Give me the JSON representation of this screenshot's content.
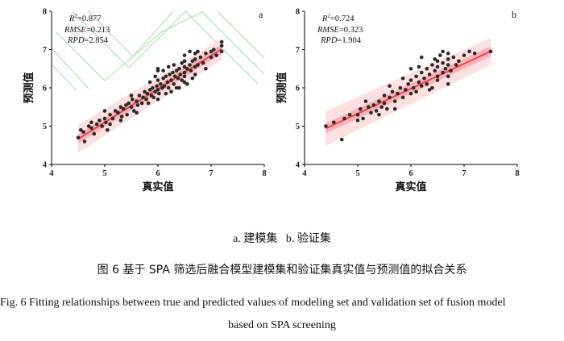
{
  "subcaption": {
    "a_label": "a. 建模集",
    "b_label": "b. 验证集"
  },
  "figure_caption_cn": "图 6   基于 SPA 筛选后融合模型建模集和验证集真实值与预测值的拟合关系",
  "figure_caption_en_line1": "Fig. 6  Fitting relationships between true and predicted values of modeling set and validation set of fusion model",
  "figure_caption_en_line2": "based on SPA screening",
  "colors": {
    "points": "#2a2a2a",
    "fit_line": "#e8474c",
    "band_inner": "#f4a3a7",
    "band_outer": "#fbd9db",
    "axis": "#000000",
    "contour": "#9fe09f"
  },
  "chart_data": [
    {
      "type": "scatter",
      "panel": "a",
      "xlabel": "真实值",
      "ylabel": "预测值",
      "xlim": [
        4,
        8
      ],
      "ylim": [
        4,
        8
      ],
      "xticks": [
        4,
        5,
        6,
        7,
        8
      ],
      "yticks": [
        4,
        5,
        6,
        7,
        8
      ],
      "stats": {
        "r2": "=0.877",
        "rmse": "=0.213",
        "rpd": "=2.854"
      },
      "fit": {
        "slope": 0.87,
        "intercept": 0.75,
        "x_range": [
          4.5,
          7.2
        ],
        "band_inner": 0.12,
        "band_outer": 0.28
      },
      "points": [
        [
          4.5,
          4.7
        ],
        [
          4.55,
          4.9
        ],
        [
          4.6,
          4.85
        ],
        [
          4.62,
          4.6
        ],
        [
          4.7,
          5.0
        ],
        [
          4.75,
          5.1
        ],
        [
          4.8,
          4.8
        ],
        [
          4.85,
          5.05
        ],
        [
          4.9,
          5.15
        ],
        [
          4.95,
          5.0
        ],
        [
          5.0,
          5.2
        ],
        [
          5.02,
          5.1
        ],
        [
          5.05,
          4.9
        ],
        [
          5.1,
          5.3
        ],
        [
          5.15,
          5.2
        ],
        [
          5.2,
          5.4
        ],
        [
          5.25,
          5.35
        ],
        [
          5.3,
          5.5
        ],
        [
          5.32,
          5.25
        ],
        [
          5.35,
          5.45
        ],
        [
          5.4,
          5.55
        ],
        [
          5.42,
          5.3
        ],
        [
          5.45,
          5.6
        ],
        [
          5.5,
          5.5
        ],
        [
          5.52,
          5.7
        ],
        [
          5.55,
          5.4
        ],
        [
          5.6,
          5.65
        ],
        [
          5.62,
          5.55
        ],
        [
          5.65,
          5.8
        ],
        [
          5.7,
          5.6
        ],
        [
          5.72,
          5.75
        ],
        [
          5.75,
          5.9
        ],
        [
          5.78,
          5.7
        ],
        [
          5.8,
          5.85
        ],
        [
          5.82,
          5.6
        ],
        [
          5.85,
          5.95
        ],
        [
          5.88,
          5.8
        ],
        [
          5.9,
          6.0
        ],
        [
          5.92,
          5.75
        ],
        [
          5.95,
          5.9
        ],
        [
          5.98,
          6.05
        ],
        [
          6.0,
          5.95
        ],
        [
          6.0,
          6.2
        ],
        [
          6.02,
          5.85
        ],
        [
          6.05,
          6.1
        ],
        [
          6.08,
          6.0
        ],
        [
          6.1,
          6.25
        ],
        [
          6.12,
          6.05
        ],
        [
          6.15,
          6.3
        ],
        [
          6.18,
          6.15
        ],
        [
          6.2,
          6.0
        ],
        [
          6.22,
          6.35
        ],
        [
          6.25,
          6.2
        ],
        [
          6.28,
          6.4
        ],
        [
          6.3,
          6.1
        ],
        [
          6.32,
          6.3
        ],
        [
          6.35,
          6.45
        ],
        [
          6.38,
          6.25
        ],
        [
          6.4,
          6.5
        ],
        [
          6.42,
          6.35
        ],
        [
          6.45,
          6.2
        ],
        [
          6.5,
          6.55
        ],
        [
          6.5,
          6.4
        ],
        [
          6.5,
          6.7
        ],
        [
          6.5,
          6.3
        ],
        [
          6.5,
          6.85
        ],
        [
          6.5,
          6.15
        ],
        [
          6.55,
          6.5
        ],
        [
          6.6,
          6.6
        ],
        [
          6.62,
          6.45
        ],
        [
          6.65,
          6.7
        ],
        [
          6.7,
          6.55
        ],
        [
          6.7,
          6.9
        ],
        [
          6.7,
          6.35
        ],
        [
          6.7,
          6.75
        ],
        [
          6.75,
          6.6
        ],
        [
          6.8,
          6.8
        ],
        [
          6.85,
          6.65
        ],
        [
          6.9,
          6.9
        ],
        [
          7.0,
          6.8
        ],
        [
          7.0,
          6.95
        ],
        [
          7.05,
          7.0
        ],
        [
          7.1,
          6.85
        ],
        [
          7.2,
          7.1
        ],
        [
          7.2,
          6.95
        ],
        [
          7.2,
          7.2
        ],
        [
          6.0,
          6.5
        ],
        [
          6.0,
          5.7
        ],
        [
          5.5,
          5.8
        ],
        [
          6.0,
          6.45
        ],
        [
          6.3,
          6.6
        ],
        [
          6.6,
          6.95
        ],
        [
          6.4,
          6.0
        ],
        [
          6.9,
          6.5
        ],
        [
          5.6,
          5.35
        ],
        [
          5.0,
          5.4
        ],
        [
          4.75,
          4.95
        ],
        [
          5.85,
          6.15
        ],
        [
          6.15,
          5.85
        ],
        [
          6.65,
          6.25
        ],
        [
          6.2,
          6.55
        ],
        [
          6.45,
          6.65
        ],
        [
          6.55,
          6.1
        ],
        [
          5.3,
          5.15
        ],
        [
          5.1,
          5.05
        ],
        [
          6.35,
          6.0
        ],
        [
          6.1,
          6.45
        ],
        [
          6.25,
          5.9
        ],
        [
          5.95,
          6.3
        ],
        [
          6.75,
          6.95
        ]
      ]
    },
    {
      "type": "scatter",
      "panel": "b",
      "xlabel": "真实值",
      "ylabel": "预测值",
      "xlim": [
        4,
        8
      ],
      "ylim": [
        4,
        8
      ],
      "xticks": [
        4,
        5,
        6,
        7,
        8
      ],
      "yticks": [
        4,
        5,
        6,
        7,
        8
      ],
      "stats": {
        "r2": "=0.724",
        "rmse": "=0.323",
        "rpd": "=1.904"
      },
      "fit": {
        "slope": 0.65,
        "intercept": 2.08,
        "x_range": [
          4.4,
          7.5
        ],
        "band_inner": 0.13,
        "band_outer": 0.35
      },
      "points": [
        [
          4.4,
          5.0
        ],
        [
          4.55,
          5.1
        ],
        [
          4.7,
          4.65
        ],
        [
          4.75,
          5.2
        ],
        [
          4.85,
          5.3
        ],
        [
          5.0,
          5.3
        ],
        [
          5.05,
          5.45
        ],
        [
          5.1,
          5.2
        ],
        [
          5.2,
          5.5
        ],
        [
          5.25,
          5.35
        ],
        [
          5.3,
          5.55
        ],
        [
          5.35,
          5.4
        ],
        [
          5.4,
          5.65
        ],
        [
          5.45,
          5.5
        ],
        [
          5.5,
          5.8
        ],
        [
          5.5,
          5.6
        ],
        [
          5.55,
          5.45
        ],
        [
          5.6,
          5.75
        ],
        [
          5.65,
          5.9
        ],
        [
          5.7,
          5.65
        ],
        [
          5.75,
          5.85
        ],
        [
          5.8,
          6.0
        ],
        [
          5.85,
          5.75
        ],
        [
          5.9,
          5.95
        ],
        [
          5.95,
          6.1
        ],
        [
          6.0,
          5.85
        ],
        [
          6.0,
          6.2
        ],
        [
          6.05,
          6.0
        ],
        [
          6.1,
          6.3
        ],
        [
          6.1,
          5.9
        ],
        [
          6.15,
          6.15
        ],
        [
          6.2,
          6.4
        ],
        [
          6.2,
          6.05
        ],
        [
          6.25,
          6.25
        ],
        [
          6.3,
          6.5
        ],
        [
          6.3,
          6.1
        ],
        [
          6.35,
          6.35
        ],
        [
          6.4,
          6.6
        ],
        [
          6.4,
          6.0
        ],
        [
          6.45,
          6.45
        ],
        [
          6.5,
          6.7
        ],
        [
          6.5,
          6.3
        ],
        [
          6.5,
          6.55
        ],
        [
          6.5,
          6.2
        ],
        [
          6.55,
          6.85
        ],
        [
          6.6,
          6.4
        ],
        [
          6.6,
          6.65
        ],
        [
          6.65,
          6.5
        ],
        [
          6.7,
          6.9
        ],
        [
          6.7,
          6.3
        ],
        [
          6.7,
          6.75
        ],
        [
          6.7,
          6.1
        ],
        [
          6.7,
          6.6
        ],
        [
          6.75,
          6.45
        ],
        [
          6.8,
          6.8
        ],
        [
          6.85,
          6.6
        ],
        [
          6.9,
          6.7
        ],
        [
          7.0,
          6.85
        ],
        [
          7.1,
          6.95
        ],
        [
          7.2,
          6.9
        ],
        [
          7.5,
          6.95
        ],
        [
          5.15,
          5.65
        ],
        [
          5.6,
          6.05
        ],
        [
          6.2,
          6.8
        ],
        [
          5.4,
          5.3
        ],
        [
          6.0,
          6.5
        ],
        [
          5.7,
          5.45
        ],
        [
          6.45,
          6.75
        ],
        [
          5.0,
          5.15
        ],
        [
          6.35,
          5.95
        ],
        [
          6.6,
          6.95
        ],
        [
          6.15,
          6.55
        ],
        [
          5.85,
          6.25
        ]
      ]
    }
  ]
}
